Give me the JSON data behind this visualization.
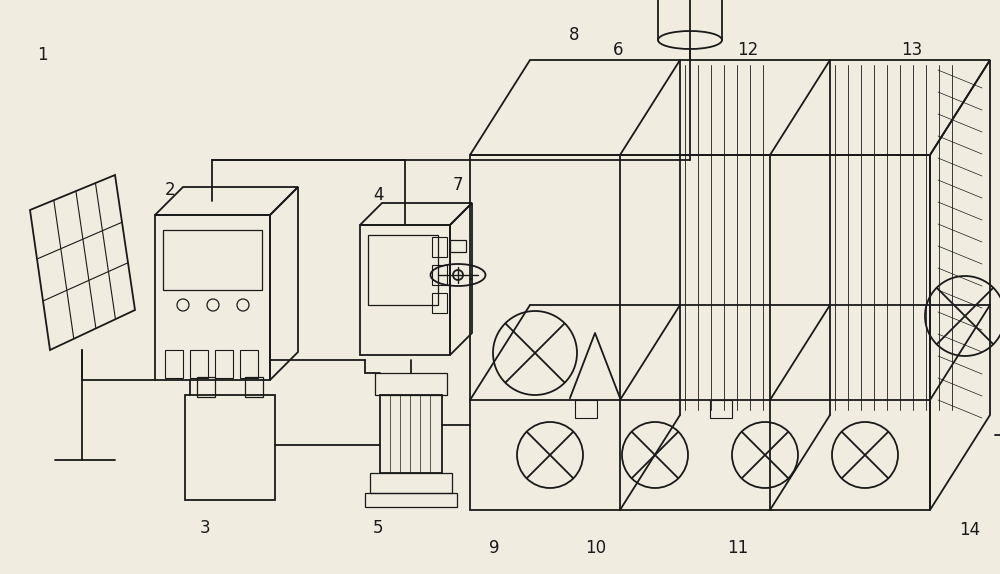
{
  "bg_color": "#f0ece0",
  "line_color": "#1a1a1a",
  "figsize": [
    10.0,
    5.74
  ],
  "dpi": 100,
  "lw": 1.3
}
